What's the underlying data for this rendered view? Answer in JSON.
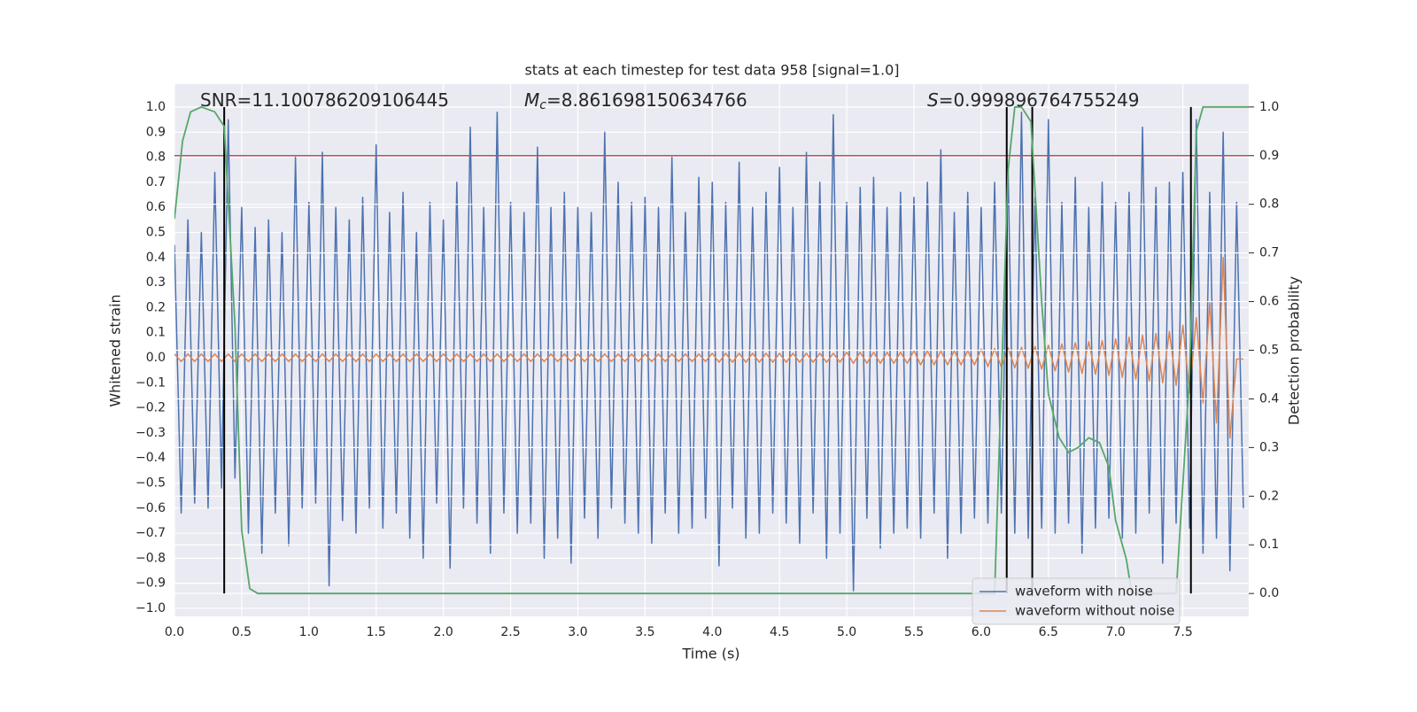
{
  "chart_data": {
    "type": "line",
    "title": "stats at each timestep for test data 958 [signal=1.0]",
    "x_label": "Time (s)",
    "y_label": "Whitened strain",
    "y2_label": "Detection probability",
    "annotations": [
      {
        "text": "SNR=11.100786209106445"
      },
      {
        "symbol": "M",
        "subscript": "c",
        "text": "=8.861698150634766"
      },
      {
        "symbol": "S",
        "text": "=0.999896764755249"
      }
    ],
    "xlim": [
      0,
      7.99
    ],
    "ylim": [
      -1.032,
      1.092
    ],
    "y2lim": [
      -0.047,
      1.047
    ],
    "xticks": [
      {
        "value": 0,
        "label": "0.0"
      },
      {
        "value": 0.5,
        "label": "0.5"
      },
      {
        "value": 1,
        "label": "1.0"
      },
      {
        "value": 1.5,
        "label": "1.5"
      },
      {
        "value": 2,
        "label": "2.0"
      },
      {
        "value": 2.5,
        "label": "2.5"
      },
      {
        "value": 3,
        "label": "3.0"
      },
      {
        "value": 3.5,
        "label": "3.5"
      },
      {
        "value": 4,
        "label": "4.0"
      },
      {
        "value": 4.5,
        "label": "4.5"
      },
      {
        "value": 5,
        "label": "5.0"
      },
      {
        "value": 5.5,
        "label": "5.5"
      },
      {
        "value": 6,
        "label": "6.0"
      },
      {
        "value": 6.5,
        "label": "6.5"
      },
      {
        "value": 7,
        "label": "7.0"
      },
      {
        "value": 7.5,
        "label": "7.5"
      }
    ],
    "yticks": [
      {
        "value": -1,
        "label": "−1.0"
      },
      {
        "value": -0.9,
        "label": "−0.9"
      },
      {
        "value": -0.8,
        "label": "−0.8"
      },
      {
        "value": -0.7,
        "label": "−0.7"
      },
      {
        "value": -0.6,
        "label": "−0.6"
      },
      {
        "value": -0.5,
        "label": "−0.5"
      },
      {
        "value": -0.4,
        "label": "−0.4"
      },
      {
        "value": -0.3,
        "label": "−0.3"
      },
      {
        "value": -0.2,
        "label": "−0.2"
      },
      {
        "value": -0.1,
        "label": "−0.1"
      },
      {
        "value": 0,
        "label": "0.0"
      },
      {
        "value": 0.1,
        "label": "0.1"
      },
      {
        "value": 0.2,
        "label": "0.2"
      },
      {
        "value": 0.3,
        "label": "0.3"
      },
      {
        "value": 0.4,
        "label": "0.4"
      },
      {
        "value": 0.5,
        "label": "0.5"
      },
      {
        "value": 0.6,
        "label": "0.6"
      },
      {
        "value": 0.7,
        "label": "0.7"
      },
      {
        "value": 0.8,
        "label": "0.8"
      },
      {
        "value": 0.9,
        "label": "0.9"
      },
      {
        "value": 1,
        "label": "1.0"
      }
    ],
    "y2ticks": [
      {
        "value": 0,
        "label": "0.0"
      },
      {
        "value": 0.1,
        "label": "0.1"
      },
      {
        "value": 0.2,
        "label": "0.2"
      },
      {
        "value": 0.3,
        "label": "0.3"
      },
      {
        "value": 0.4,
        "label": "0.4"
      },
      {
        "value": 0.5,
        "label": "0.5"
      },
      {
        "value": 0.6,
        "label": "0.6"
      },
      {
        "value": 0.7,
        "label": "0.7"
      },
      {
        "value": 0.8,
        "label": "0.8"
      },
      {
        "value": 0.9,
        "label": "0.9"
      },
      {
        "value": 1,
        "label": "1.0"
      }
    ],
    "grid": true,
    "legend": "lower right",
    "x": [
      0,
      0.05,
      0.1,
      0.15,
      0.2,
      0.25,
      0.3,
      0.35,
      0.4,
      0.45,
      0.5,
      0.55,
      0.6,
      0.65,
      0.7,
      0.75,
      0.8,
      0.85,
      0.9,
      0.95,
      1,
      1.05,
      1.1,
      1.15,
      1.2,
      1.25,
      1.3,
      1.35,
      1.4,
      1.45,
      1.5,
      1.55,
      1.6,
      1.65,
      1.7,
      1.75,
      1.8,
      1.85,
      1.9,
      1.95,
      2,
      2.05,
      2.1,
      2.15,
      2.2,
      2.25,
      2.3,
      2.35,
      2.4,
      2.45,
      2.5,
      2.55,
      2.6,
      2.65,
      2.7,
      2.75,
      2.8,
      2.85,
      2.9,
      2.95,
      3,
      3.05,
      3.1,
      3.15,
      3.2,
      3.25,
      3.3,
      3.35,
      3.4,
      3.45,
      3.5,
      3.55,
      3.6,
      3.65,
      3.7,
      3.75,
      3.8,
      3.85,
      3.9,
      3.95,
      4,
      4.05,
      4.1,
      4.15,
      4.2,
      4.25,
      4.3,
      4.35,
      4.4,
      4.45,
      4.5,
      4.55,
      4.6,
      4.65,
      4.7,
      4.75,
      4.8,
      4.85,
      4.9,
      4.95,
      5,
      5.05,
      5.1,
      5.15,
      5.2,
      5.25,
      5.3,
      5.35,
      5.4,
      5.45,
      5.5,
      5.55,
      5.6,
      5.65,
      5.7,
      5.75,
      5.8,
      5.85,
      5.9,
      5.95,
      6,
      6.05,
      6.1,
      6.15,
      6.2,
      6.25,
      6.3,
      6.35,
      6.4,
      6.45,
      6.5,
      6.55,
      6.6,
      6.65,
      6.7,
      6.75,
      6.8,
      6.85,
      6.9,
      6.95,
      7,
      7.05,
      7.1,
      7.15,
      7.2,
      7.25,
      7.3,
      7.35,
      7.4,
      7.45,
      7.5,
      7.55,
      7.6,
      7.65,
      7.7,
      7.75,
      7.8,
      7.85,
      7.9,
      7.95
    ],
    "series": [
      {
        "name": "waveform with noise",
        "color": "#4c72b0",
        "values": [
          0.45,
          -0.62,
          0.55,
          -0.58,
          0.5,
          -0.6,
          0.74,
          -0.52,
          0.95,
          -0.48,
          0.6,
          -0.7,
          0.52,
          -0.78,
          0.55,
          -0.62,
          0.5,
          -0.75,
          0.8,
          -0.6,
          0.62,
          -0.58,
          0.82,
          -0.91,
          0.6,
          -0.65,
          0.55,
          -0.7,
          0.64,
          -0.6,
          0.85,
          -0.68,
          0.58,
          -0.62,
          0.66,
          -0.72,
          0.5,
          -0.8,
          0.62,
          -0.58,
          0.55,
          -0.84,
          0.7,
          -0.6,
          0.92,
          -0.66,
          0.6,
          -0.78,
          0.98,
          -0.62,
          0.62,
          -0.7,
          0.58,
          -0.66,
          0.84,
          -0.8,
          0.6,
          -0.72,
          0.66,
          -0.82,
          0.6,
          -0.64,
          0.58,
          -0.72,
          0.9,
          -0.6,
          0.7,
          -0.66,
          0.62,
          -0.7,
          0.64,
          -0.74,
          0.6,
          -0.62,
          0.8,
          -0.7,
          0.58,
          -0.68,
          0.72,
          -0.64,
          0.7,
          -0.83,
          0.62,
          -0.6,
          0.78,
          -0.72,
          0.6,
          -0.7,
          0.66,
          -0.62,
          0.76,
          -0.66,
          0.6,
          -0.74,
          0.82,
          -0.62,
          0.7,
          -0.8,
          0.97,
          -0.7,
          0.62,
          -0.93,
          0.68,
          -0.64,
          0.72,
          -0.76,
          0.6,
          -0.7,
          0.66,
          -0.68,
          0.64,
          -0.72,
          0.7,
          -0.62,
          0.83,
          -0.8,
          0.58,
          -0.7,
          0.66,
          -0.64,
          0.6,
          -0.66,
          0.7,
          -0.62,
          0.76,
          -0.7,
          0.98,
          -0.72,
          0.64,
          -0.68,
          0.95,
          -0.7,
          0.62,
          -0.66,
          0.72,
          -0.78,
          0.6,
          -0.68,
          0.7,
          -0.64,
          0.62,
          -0.72,
          0.66,
          -0.7,
          0.92,
          -0.62,
          0.68,
          -0.82,
          0.7,
          -0.66,
          0.74,
          -0.68,
          0.95,
          -0.78,
          0.66,
          -0.72,
          0.9,
          -0.85,
          0.62,
          -0.6
        ]
      },
      {
        "name": "waveform without noise",
        "color": "#dd8452",
        "values": [
          0.015,
          -0.015,
          0.015,
          -0.015,
          0.015,
          -0.015,
          0.015,
          -0.015,
          0.015,
          -0.015,
          0.015,
          -0.015,
          0.015,
          -0.015,
          0.015,
          -0.015,
          0.015,
          -0.015,
          0.015,
          -0.015,
          0.015,
          -0.015,
          0.015,
          -0.015,
          0.015,
          -0.015,
          0.015,
          -0.015,
          0.015,
          -0.015,
          0.015,
          -0.015,
          0.015,
          -0.015,
          0.015,
          -0.015,
          0.015,
          -0.015,
          0.015,
          -0.015,
          0.015,
          -0.015,
          0.015,
          -0.015,
          0.015,
          -0.015,
          0.015,
          -0.015,
          0.015,
          -0.015,
          0.015,
          -0.015,
          0.015,
          -0.015,
          0.015,
          -0.015,
          0.015,
          -0.015,
          0.015,
          -0.015,
          0.015,
          -0.015,
          0.015,
          -0.015,
          0.015,
          -0.015,
          0.015,
          -0.015,
          0.015,
          -0.015,
          0.015,
          -0.015,
          0.015,
          -0.015,
          0.015,
          -0.015,
          0.015,
          -0.015,
          0.015,
          -0.015,
          0.018,
          -0.018,
          0.018,
          -0.018,
          0.018,
          -0.018,
          0.018,
          -0.018,
          0.018,
          -0.018,
          0.018,
          -0.018,
          0.018,
          -0.018,
          0.018,
          -0.018,
          0.018,
          -0.018,
          0.018,
          -0.018,
          0.022,
          -0.022,
          0.022,
          -0.022,
          0.022,
          -0.022,
          0.022,
          -0.022,
          0.022,
          -0.022,
          0.028,
          -0.028,
          0.028,
          -0.028,
          0.028,
          -0.028,
          0.028,
          -0.028,
          0.028,
          -0.028,
          0.035,
          -0.035,
          0.037,
          -0.037,
          0.04,
          -0.04,
          0.042,
          -0.042,
          0.045,
          -0.045,
          0.05,
          -0.052,
          0.055,
          -0.057,
          0.06,
          -0.062,
          0.064,
          -0.066,
          0.068,
          -0.07,
          0.075,
          -0.078,
          0.082,
          -0.085,
          0.09,
          -0.093,
          0.097,
          -0.1,
          0.105,
          -0.11,
          0.13,
          -0.14,
          0.16,
          -0.18,
          0.22,
          -0.26,
          0.4,
          -0.32,
          -0.005,
          -0.005
        ]
      },
      {
        "color": "#55a868",
        "axis": "y2",
        "x": [
          0,
          0.06,
          0.12,
          0.2,
          0.3,
          0.37,
          0.45,
          0.5,
          0.56,
          0.62,
          1,
          5.5,
          6.1,
          6.2,
          6.25,
          6.3,
          6.37,
          6.45,
          6.5,
          6.58,
          6.65,
          6.72,
          6.8,
          6.88,
          6.95,
          7,
          7.08,
          7.12,
          7.45,
          7.55,
          7.6,
          7.65,
          7.99
        ],
        "values": [
          0.77,
          0.93,
          0.99,
          1,
          0.99,
          0.96,
          0.55,
          0.13,
          0.01,
          0,
          0,
          0,
          0,
          0.87,
          1,
          1,
          0.97,
          0.6,
          0.41,
          0.32,
          0.29,
          0.3,
          0.32,
          0.31,
          0.26,
          0.15,
          0.07,
          0,
          0,
          0.45,
          0.95,
          1,
          1
        ]
      }
    ],
    "threshold": 0.9,
    "threshold_color": "#c44e52",
    "vlines": [
      0.37,
      6.19,
      6.38,
      7.56
    ],
    "vline_color": "#000000"
  }
}
